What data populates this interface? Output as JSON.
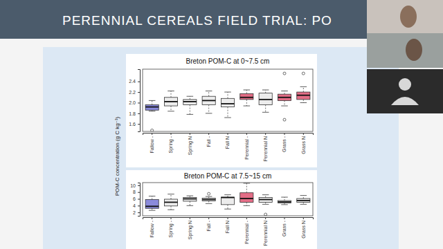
{
  "header": {
    "title": "PERENNIAL CEREALS FIELD TRIAL: PO"
  },
  "chart_data": [
    {
      "type": "box",
      "title": "Breton POM-C at 0~7.5 cm",
      "ylabel": "POM-C concentration (g C kg⁻¹)",
      "categories": [
        "Fallow -",
        "Spring -",
        "Spring N",
        "Fall -",
        "Fall N",
        "Perennial -",
        "Perennial N",
        "Grass -",
        "Grass N"
      ],
      "colors": [
        "#8b8bdc",
        "#ececec",
        "#ececec",
        "#ececec",
        "#ececec",
        "#e36d86",
        "#ececec",
        "#e36d86",
        "#e36d86"
      ],
      "whisker_low": [
        1.84,
        1.84,
        1.78,
        1.8,
        1.72,
        1.94,
        1.82,
        1.94,
        2.0
      ],
      "q1": [
        1.86,
        1.94,
        1.96,
        1.96,
        1.92,
        2.06,
        1.96,
        2.04,
        2.06
      ],
      "median": [
        1.92,
        2.02,
        2.02,
        2.04,
        1.98,
        2.1,
        2.06,
        2.1,
        2.14
      ],
      "q3": [
        1.96,
        2.1,
        2.06,
        2.12,
        2.08,
        2.17,
        2.18,
        2.16,
        2.2
      ],
      "whisker_high": [
        2.04,
        2.22,
        2.12,
        2.22,
        2.2,
        2.24,
        2.24,
        2.22,
        2.3
      ],
      "outliers": [
        [
          1.48
        ],
        [],
        [],
        [],
        [],
        [],
        [],
        [
          2.55,
          1.68
        ],
        [
          2.55
        ]
      ],
      "ylim": [
        1.46,
        2.63
      ],
      "yticks": [
        1.6,
        1.8,
        {
          "value": 2,
          "label": "2.0"
        },
        2.2,
        2.4
      ]
    },
    {
      "type": "box",
      "title": "Breton POM-C at 7.5~15 cm",
      "categories": [
        "Fallow -",
        "Spring -",
        "Spring N",
        "Fall -",
        "Fall N",
        "Perennial -",
        "Perennial N",
        "Grass -",
        "Grass N"
      ],
      "colors": [
        "#8b8bdc",
        "#ececec",
        "#ececec",
        "#ececec",
        "#ececec",
        "#e36d86",
        "#ececec",
        "#ececec",
        "#ececec"
      ],
      "whisker_low": [
        2.6,
        2.8,
        4.0,
        4.6,
        3.0,
        4.0,
        4.4,
        4.3,
        4.4
      ],
      "q1": [
        3.2,
        3.9,
        5.3,
        5.4,
        4.3,
        5.0,
        5.0,
        4.8,
        5.0
      ],
      "median": [
        3.8,
        5.0,
        6.0,
        5.8,
        6.4,
        6.1,
        5.8,
        5.1,
        5.5
      ],
      "q3": [
        5.8,
        5.9,
        6.4,
        6.2,
        6.5,
        7.8,
        6.4,
        5.5,
        6.1
      ],
      "whisker_high": [
        6.8,
        7.4,
        6.9,
        6.7,
        7.2,
        10.6,
        7.2,
        6.5,
        7.0
      ],
      "outliers": [
        [],
        [],
        [],
        [
          7.5
        ],
        [],
        [],
        [
          1.4
        ],
        [],
        []
      ],
      "ylim": [
        1.0,
        10.8
      ],
      "yticks": [
        2,
        4,
        6,
        8,
        10
      ]
    }
  ]
}
